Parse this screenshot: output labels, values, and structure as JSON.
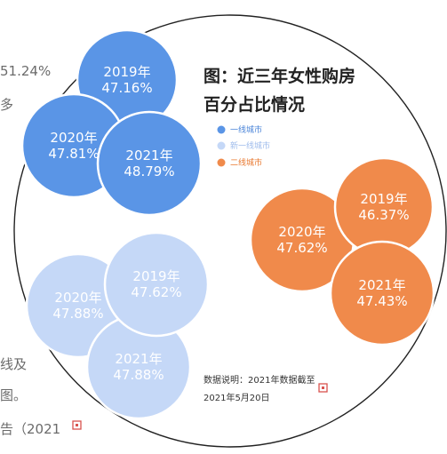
{
  "background_text": {
    "t1": "51.24%",
    "t2": "多",
    "t3": "线及",
    "t4": "图。",
    "t5": "告（2021"
  },
  "colors": {
    "tier1": "#5a95e6",
    "new_tier1": "#c5d8f7",
    "tier2": "#f08a4b",
    "tier2_legend_text": "#e8782f",
    "tier1_legend_text": "#4a84d8",
    "new_tier1_legend_text": "#9fbcec",
    "mark_icon": "#d9534f"
  },
  "chart_data": {
    "type": "bubble",
    "title": "图：近三年女性购房百分占比情况",
    "title_lines": [
      "图：近三年女性购房",
      "百分占比情况"
    ],
    "unit": "%",
    "legend": [
      "一线城市",
      "新一线城市",
      "二线城市"
    ],
    "legend_placement": "top-right",
    "note_lines": [
      "数据说明：2021年数据截至",
      "2021年5月20日"
    ],
    "series": [
      {
        "name": "一线城市",
        "points": [
          {
            "year": "2019年",
            "value": 47.16
          },
          {
            "year": "2020年",
            "value": 47.81
          },
          {
            "year": "2021年",
            "value": 48.79
          }
        ]
      },
      {
        "name": "新一线城市",
        "points": [
          {
            "year": "2019年",
            "value": 47.62
          },
          {
            "year": "2020年",
            "value": 47.88
          },
          {
            "year": "2021年",
            "value": 47.88
          }
        ]
      },
      {
        "name": "二线城市",
        "points": [
          {
            "year": "2019年",
            "value": 46.37
          },
          {
            "year": "2020年",
            "value": 47.62
          },
          {
            "year": "2021年",
            "value": 47.43
          }
        ]
      }
    ]
  }
}
